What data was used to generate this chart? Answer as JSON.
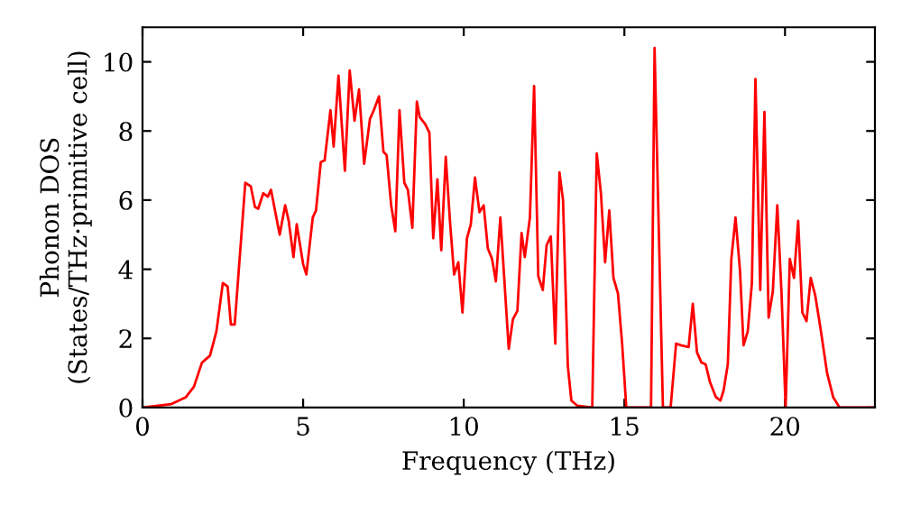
{
  "chart_data": {
    "type": "line",
    "xlabel": "Frequency (THz)",
    "ylabel": "Phonon DOS\n(States/THz·primitive cell)",
    "xlim": [
      0,
      22.8
    ],
    "ylim": [
      0,
      11
    ],
    "xticks": [
      0,
      5,
      10,
      15,
      20
    ],
    "yticks": [
      0,
      2,
      4,
      6,
      8,
      10
    ],
    "grid": false,
    "marker": "none",
    "line_style": "solid",
    "series": [
      {
        "color": "#ff0000",
        "x": [
          0,
          0.9,
          1.35,
          1.6,
          1.85,
          2.1,
          2.3,
          2.5,
          2.65,
          2.75,
          2.87,
          3.2,
          3.37,
          3.5,
          3.6,
          3.76,
          3.9,
          4.0,
          4.27,
          4.44,
          4.55,
          4.7,
          4.8,
          5.0,
          5.1,
          5.3,
          5.4,
          5.55,
          5.67,
          5.85,
          5.95,
          6.1,
          6.3,
          6.45,
          6.6,
          6.74,
          6.9,
          7.08,
          7.2,
          7.36,
          7.5,
          7.6,
          7.74,
          7.87,
          8.0,
          8.15,
          8.26,
          8.4,
          8.54,
          8.63,
          8.8,
          8.93,
          9.05,
          9.18,
          9.3,
          9.44,
          9.57,
          9.7,
          9.83,
          9.96,
          10.1,
          10.22,
          10.35,
          10.49,
          10.62,
          10.75,
          10.88,
          11.0,
          11.14,
          11.4,
          11.53,
          11.67,
          11.8,
          11.9,
          12.06,
          12.19,
          12.32,
          12.46,
          12.58,
          12.71,
          12.85,
          12.98,
          13.09,
          13.24,
          13.35,
          13.54,
          14.0,
          14.14,
          14.27,
          14.4,
          14.53,
          14.66,
          14.8,
          14.93,
          15.06,
          15.83,
          15.94,
          16.2,
          16.44,
          16.61,
          16.76,
          17.0,
          17.13,
          17.26,
          17.4,
          17.53,
          17.66,
          17.85,
          17.99,
          18.09,
          18.22,
          18.33,
          18.46,
          18.6,
          18.71,
          18.84,
          18.97,
          19.08,
          19.23,
          19.36,
          19.49,
          19.62,
          19.76,
          19.89,
          20.02,
          20.15,
          20.28,
          20.41,
          20.54,
          20.67,
          20.8,
          20.94,
          21.12,
          21.31,
          21.5,
          21.7,
          22.8
        ],
        "values": [
          0,
          0.1,
          0.3,
          0.6,
          1.3,
          1.5,
          2.2,
          3.6,
          3.5,
          2.4,
          2.4,
          6.5,
          6.4,
          5.8,
          5.75,
          6.2,
          6.1,
          6.3,
          5.0,
          5.85,
          5.4,
          4.35,
          5.3,
          4.15,
          3.85,
          5.5,
          5.7,
          7.1,
          7.15,
          8.6,
          7.55,
          9.6,
          6.85,
          9.75,
          8.3,
          9.2,
          7.05,
          8.35,
          8.6,
          9.0,
          7.4,
          7.3,
          5.85,
          5.1,
          8.6,
          6.5,
          6.3,
          5.2,
          8.85,
          8.4,
          8.2,
          7.95,
          4.9,
          6.6,
          4.55,
          7.25,
          5.4,
          3.85,
          4.2,
          2.75,
          4.9,
          5.3,
          6.65,
          5.65,
          5.85,
          4.6,
          4.3,
          3.65,
          5.5,
          1.7,
          2.55,
          2.8,
          5.05,
          4.35,
          5.5,
          9.3,
          3.8,
          3.4,
          4.7,
          4.95,
          1.85,
          6.8,
          6.0,
          1.2,
          0.2,
          0.05,
          0,
          7.35,
          6.2,
          4.2,
          5.7,
          3.75,
          3.3,
          1.85,
          0,
          0,
          10.4,
          0,
          0,
          1.85,
          1.8,
          1.75,
          3.0,
          1.6,
          1.3,
          1.25,
          0.75,
          0.3,
          0.2,
          0.5,
          1.25,
          4.3,
          5.5,
          3.95,
          1.8,
          2.2,
          3.6,
          9.5,
          3.4,
          8.55,
          2.6,
          3.35,
          5.85,
          3.35,
          0,
          4.3,
          3.75,
          5.4,
          2.75,
          2.5,
          3.75,
          3.25,
          2.2,
          1.0,
          0.3,
          0,
          0
        ]
      }
    ]
  }
}
